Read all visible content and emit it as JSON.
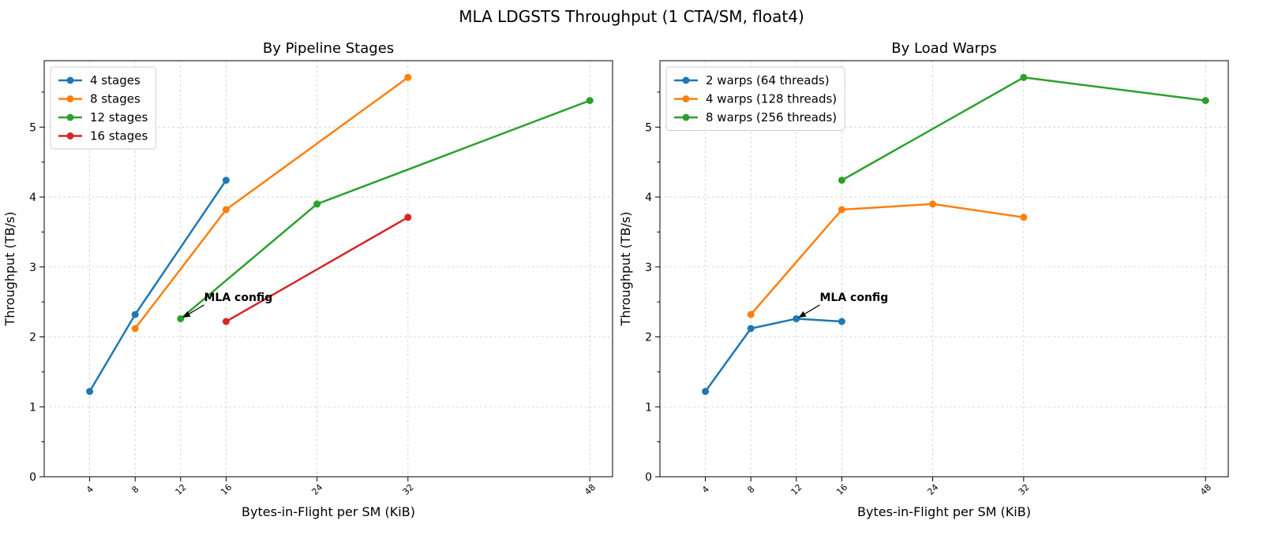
{
  "suptitle": "MLA LDGSTS Throughput (1 CTA/SM, float4)",
  "chart_data": [
    {
      "type": "line",
      "title": "By Pipeline Stages",
      "xlabel": "Bytes-in-Flight per SM (KiB)",
      "ylabel": "Throughput (TB/s)",
      "xticks": [
        4,
        8,
        12,
        16,
        24,
        32,
        48
      ],
      "yticks": [
        0,
        1,
        2,
        3,
        4,
        5
      ],
      "xlim": [
        0,
        50
      ],
      "ylim": [
        0,
        5.95
      ],
      "grid": true,
      "legend_position": "top-left",
      "series": [
        {
          "name": "4 stages",
          "color": "#1f77b4",
          "x": [
            4,
            8,
            16
          ],
          "y": [
            1.22,
            2.32,
            4.24
          ]
        },
        {
          "name": "8 stages",
          "color": "#ff7f0e",
          "x": [
            8,
            16,
            32
          ],
          "y": [
            2.12,
            3.82,
            5.71
          ]
        },
        {
          "name": "12 stages",
          "color": "#2ca02c",
          "x": [
            12,
            24,
            48
          ],
          "y": [
            2.26,
            3.9,
            5.38
          ]
        },
        {
          "name": "16 stages",
          "color": "#d62728",
          "x": [
            16,
            32
          ],
          "y": [
            2.22,
            3.71
          ]
        }
      ],
      "annotation": {
        "text": "MLA config",
        "x": 12,
        "y": 2.26,
        "text_x": 14.2,
        "text_y": 2.48
      }
    },
    {
      "type": "line",
      "title": "By Load Warps",
      "xlabel": "Bytes-in-Flight per SM (KiB)",
      "ylabel": "Throughput (TB/s)",
      "xticks": [
        4,
        8,
        12,
        16,
        24,
        32,
        48
      ],
      "yticks": [
        0,
        1,
        2,
        3,
        4,
        5
      ],
      "xlim": [
        0,
        50
      ],
      "ylim": [
        0,
        5.95
      ],
      "grid": true,
      "legend_position": "top-left",
      "series": [
        {
          "name": "2 warps (64 threads)",
          "color": "#1f77b4",
          "x": [
            4,
            8,
            12,
            16
          ],
          "y": [
            1.22,
            2.12,
            2.26,
            2.22
          ]
        },
        {
          "name": "4 warps (128 threads)",
          "color": "#ff7f0e",
          "x": [
            8,
            16,
            24,
            32
          ],
          "y": [
            2.32,
            3.82,
            3.9,
            3.71
          ]
        },
        {
          "name": "8 warps (256 threads)",
          "color": "#2ca02c",
          "x": [
            16,
            32,
            48
          ],
          "y": [
            4.24,
            5.71,
            5.38
          ]
        }
      ],
      "annotation": {
        "text": "MLA config",
        "x": 12,
        "y": 2.26,
        "text_x": 14.2,
        "text_y": 2.48
      }
    }
  ]
}
